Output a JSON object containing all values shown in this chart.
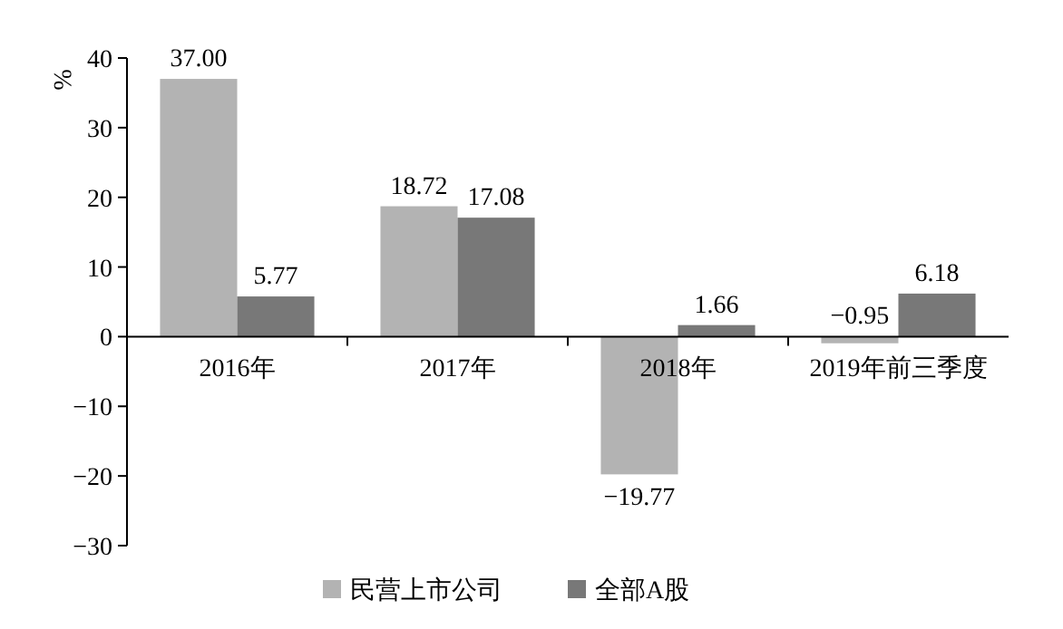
{
  "chart_data": {
    "type": "bar",
    "ylabel": "%",
    "categories": [
      "2016年",
      "2017年",
      "2018年",
      "2019年前三季度"
    ],
    "series": [
      {
        "name": "民营上市公司",
        "color": "#b3b3b3",
        "values": [
          37.0,
          18.72,
          -19.77,
          -0.95
        ],
        "value_labels": [
          "37.00",
          "18.72",
          "−19.77",
          "−0.95"
        ]
      },
      {
        "name": "全部A股",
        "color": "#787878",
        "values": [
          5.77,
          17.08,
          1.66,
          6.18
        ],
        "value_labels": [
          "5.77",
          "17.08",
          "1.66",
          "6.18"
        ]
      }
    ],
    "ylim": [
      -30,
      40
    ],
    "yticks": [
      {
        "value": -30,
        "label": "−30"
      },
      {
        "value": -20,
        "label": "−20"
      },
      {
        "value": -10,
        "label": "−10"
      },
      0,
      10,
      20,
      30,
      40
    ],
    "grid": false,
    "legend": "bottom"
  }
}
